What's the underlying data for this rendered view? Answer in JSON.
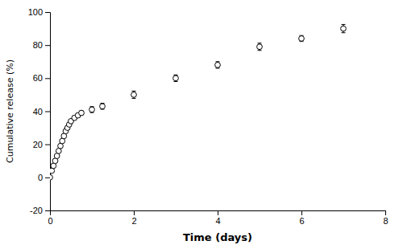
{
  "chart_data": {
    "type": "scatter",
    "xlabel": "Time (days)",
    "ylabel": "Cumulative release (%)",
    "x": [
      0,
      0.042,
      0.083,
      0.125,
      0.167,
      0.208,
      0.25,
      0.292,
      0.333,
      0.375,
      0.417,
      0.458,
      0.5,
      0.583,
      0.667,
      0.75,
      1.0,
      1.25,
      2.0,
      3.0,
      4.0,
      5.0,
      6.0,
      7.0
    ],
    "values": [
      0,
      4,
      7,
      10,
      13,
      16,
      19,
      22,
      25,
      28,
      30,
      32,
      34,
      36,
      37.5,
      39,
      41,
      43,
      50,
      60,
      68,
      79,
      84,
      90
    ],
    "errors": [
      0.3,
      0.4,
      0.5,
      0.5,
      0.7,
      0.7,
      0.8,
      0.8,
      1.0,
      1.0,
      1.0,
      1.0,
      1.0,
      1.2,
      1.2,
      1.2,
      1.8,
      1.8,
      2.2,
      2.0,
      2.0,
      2.2,
      1.8,
      2.5
    ],
    "color": "black",
    "marker": "circle",
    "xlim": [
      0,
      8
    ],
    "ylim": [
      -20,
      100
    ],
    "xticks": [
      0,
      2,
      4,
      6,
      8
    ],
    "yticks": [
      -20,
      0,
      20,
      40,
      60,
      80,
      100
    ]
  }
}
